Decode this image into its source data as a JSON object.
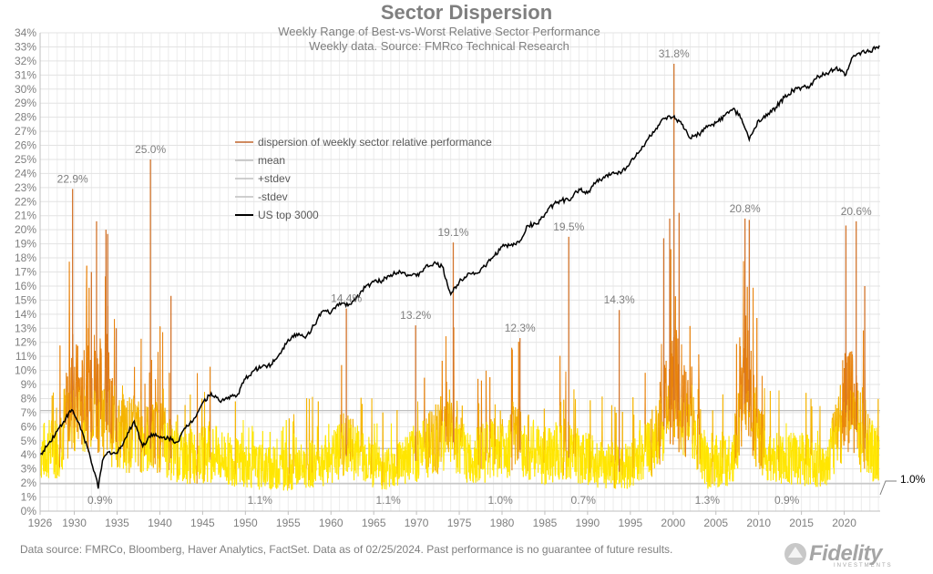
{
  "header": {
    "title": "Sector Dispersion",
    "subtitle1": "Weekly Range of Best-vs-Worst Relative Sector Performance",
    "subtitle2": "Weekly data.  Source: FMRco Technical Research"
  },
  "footer": {
    "source": "Data source: FMRCo, Bloomberg, Haver Analytics, FactSet. Data as of 02/25/2024. Past performance is no guarantee of future results.",
    "logo_text": "Fidelity",
    "logo_subtext": "INVESTMENTS"
  },
  "chart_data": {
    "type": "line",
    "title": "Sector Dispersion",
    "x_ticks": [
      "1926",
      "1930",
      "1935",
      "1940",
      "1945",
      "1950",
      "1955",
      "1960",
      "1965",
      "1970",
      "1975",
      "1980",
      "1985",
      "1990",
      "1995",
      "2000",
      "2005",
      "2010",
      "2015",
      "2020"
    ],
    "y_ticks": [
      "0%",
      "1%",
      "2%",
      "3%",
      "4%",
      "5%",
      "6%",
      "7%",
      "8%",
      "9%",
      "10%",
      "11%",
      "12%",
      "13%",
      "14%",
      "15%",
      "16%",
      "17%",
      "18%",
      "19%",
      "20%",
      "21%",
      "22%",
      "23%",
      "24%",
      "25%",
      "26%",
      "27%",
      "28%",
      "29%",
      "30%",
      "31%",
      "32%",
      "33%",
      "34%"
    ],
    "xlim": [
      1926,
      2024.2
    ],
    "ylim": [
      0,
      34
    ],
    "grid": true,
    "legend_position": "upper-left",
    "legend": [
      {
        "name": "dispersion of weekly sector relative performance",
        "color": "#c0652c"
      },
      {
        "name": "mean",
        "color": "#bfbfbf"
      },
      {
        "name": "+stdev",
        "color": "#bfbfbf"
      },
      {
        "name": "-stdev",
        "color": "#bfbfbf"
      },
      {
        "name": "US top 3000",
        "color": "#000000"
      }
    ],
    "reference_lines": {
      "mean": 4.45,
      "plus_stdev": 7.15,
      "minus_stdev": 1.95
    },
    "dispersion_series": {
      "name": "dispersion of weekly sector relative performance",
      "color_low": "#ffe600",
      "color_high": "#e8820c",
      "approx_points": [
        [
          1926,
          4.5
        ],
        [
          1928,
          5
        ],
        [
          1929.5,
          8
        ],
        [
          1930,
          9
        ],
        [
          1931,
          8
        ],
        [
          1932,
          10
        ],
        [
          1933,
          9
        ],
        [
          1935,
          6
        ],
        [
          1937,
          6
        ],
        [
          1939,
          5.5
        ],
        [
          1940,
          6
        ],
        [
          1942,
          4
        ],
        [
          1946,
          4.5
        ],
        [
          1950,
          3.5
        ],
        [
          1955,
          3.2
        ],
        [
          1960,
          4
        ],
        [
          1962,
          5
        ],
        [
          1966,
          3.2
        ],
        [
          1970,
          4.5
        ],
        [
          1974,
          6.5
        ],
        [
          1976,
          4
        ],
        [
          1980,
          5
        ],
        [
          1982,
          5.5
        ],
        [
          1985,
          4
        ],
        [
          1987,
          5
        ],
        [
          1990,
          4
        ],
        [
          1992,
          3.5
        ],
        [
          1995,
          3.5
        ],
        [
          1998,
          5.5
        ],
        [
          2000,
          10
        ],
        [
          2002,
          7
        ],
        [
          2004,
          3.5
        ],
        [
          2007,
          4
        ],
        [
          2008.5,
          10
        ],
        [
          2009.5,
          7
        ],
        [
          2011,
          4
        ],
        [
          2015,
          4
        ],
        [
          2018,
          3.5
        ],
        [
          2020.3,
          9
        ],
        [
          2021,
          8
        ],
        [
          2022,
          6
        ],
        [
          2023,
          5
        ],
        [
          2024,
          4
        ]
      ],
      "spikes": [
        [
          1929.8,
          22.9
        ],
        [
          1932,
          17
        ],
        [
          1932.6,
          20.6
        ],
        [
          1933.7,
          20
        ],
        [
          1933.9,
          19.7
        ],
        [
          1938.9,
          25.0
        ],
        [
          1934.9,
          13
        ],
        [
          1941.3,
          15.3
        ],
        [
          1961.8,
          14.4
        ],
        [
          1969.9,
          13.2
        ],
        [
          1974.3,
          19.1
        ],
        [
          1982.1,
          12.3
        ],
        [
          1987.8,
          19.5
        ],
        [
          1993.7,
          14.3
        ],
        [
          1998.9,
          19.4
        ],
        [
          1999.6,
          20.8
        ],
        [
          2000.1,
          31.8
        ],
        [
          2000.7,
          21.2
        ],
        [
          2008.4,
          20.8
        ],
        [
          2008.9,
          20.7
        ],
        [
          2020.2,
          20.3
        ],
        [
          2021.4,
          20.6
        ],
        [
          2022.4,
          16
        ]
      ],
      "annotations": [
        {
          "x": 1929.8,
          "y": 22.9,
          "text": "22.9%"
        },
        {
          "x": 1938.9,
          "y": 25.0,
          "text": "25.0%"
        },
        {
          "x": 1961.8,
          "y": 14.4,
          "text": "14.4%"
        },
        {
          "x": 1969.9,
          "y": 13.2,
          "text": "13.2%"
        },
        {
          "x": 1974.3,
          "y": 19.1,
          "text": "19.1%"
        },
        {
          "x": 1982.1,
          "y": 12.3,
          "text": "12.3%"
        },
        {
          "x": 1987.8,
          "y": 19.5,
          "text": "19.5%"
        },
        {
          "x": 1993.7,
          "y": 14.3,
          "text": "14.3%"
        },
        {
          "x": 2000.1,
          "y": 31.8,
          "text": "31.8%"
        },
        {
          "x": 2008.4,
          "y": 20.8,
          "text": "20.8%"
        },
        {
          "x": 2021.4,
          "y": 20.6,
          "text": "20.6%"
        },
        {
          "x": 1933,
          "y": 0.9,
          "text": "0.9%"
        },
        {
          "x": 1951.7,
          "y": 1.1,
          "text": "1.1%"
        },
        {
          "x": 1966.7,
          "y": 1.1,
          "text": "1.1%"
        },
        {
          "x": 1979.8,
          "y": 1.0,
          "text": "1.0%"
        },
        {
          "x": 1989.5,
          "y": 0.7,
          "text": "0.7%"
        },
        {
          "x": 2004,
          "y": 1.3,
          "text": "1.3%"
        },
        {
          "x": 2013.3,
          "y": 0.9,
          "text": "0.9%"
        },
        {
          "x": 2024,
          "y": 1.0,
          "text": "1.0%"
        }
      ]
    },
    "us_top_3000_series": {
      "name": "US top 3000",
      "color": "#000000",
      "points": [
        [
          1926,
          4.0
        ],
        [
          1927,
          4.8
        ],
        [
          1928,
          5.7
        ],
        [
          1929,
          6.6
        ],
        [
          1929.7,
          7.2
        ],
        [
          1930.5,
          6.3
        ],
        [
          1931.5,
          4.6
        ],
        [
          1932.5,
          2.5
        ],
        [
          1932.8,
          1.6
        ],
        [
          1933.3,
          3.6
        ],
        [
          1934,
          4.2
        ],
        [
          1935,
          4.1
        ],
        [
          1936,
          5.2
        ],
        [
          1937,
          6.4
        ],
        [
          1938,
          4.6
        ],
        [
          1939,
          5.5
        ],
        [
          1940,
          5.2
        ],
        [
          1941,
          5.2
        ],
        [
          1942,
          4.9
        ],
        [
          1943,
          5.9
        ],
        [
          1944,
          6.6
        ],
        [
          1945,
          7.7
        ],
        [
          1946,
          8.4
        ],
        [
          1947,
          7.8
        ],
        [
          1948,
          8.1
        ],
        [
          1949,
          8.2
        ],
        [
          1950,
          9.4
        ],
        [
          1951,
          10.0
        ],
        [
          1952,
          10.3
        ],
        [
          1953,
          10.4
        ],
        [
          1954,
          11.2
        ],
        [
          1955,
          12.2
        ],
        [
          1956,
          12.6
        ],
        [
          1957,
          12.3
        ],
        [
          1958,
          13.2
        ],
        [
          1959,
          14.2
        ],
        [
          1960,
          14.1
        ],
        [
          1961,
          14.8
        ],
        [
          1962,
          14.6
        ],
        [
          1963,
          15.2
        ],
        [
          1964,
          15.9
        ],
        [
          1965,
          16.3
        ],
        [
          1966,
          16.4
        ],
        [
          1967,
          16.8
        ],
        [
          1968,
          17.1
        ],
        [
          1969,
          16.8
        ],
        [
          1970,
          16.7
        ],
        [
          1971,
          17.3
        ],
        [
          1972,
          17.6
        ],
        [
          1973,
          17.4
        ],
        [
          1974,
          15.4
        ],
        [
          1975,
          16.3
        ],
        [
          1976,
          16.9
        ],
        [
          1977,
          16.9
        ],
        [
          1978,
          17.4
        ],
        [
          1979,
          18.1
        ],
        [
          1980,
          18.8
        ],
        [
          1981,
          18.9
        ],
        [
          1982,
          19.1
        ],
        [
          1983,
          20.3
        ],
        [
          1984,
          20.4
        ],
        [
          1985,
          21.1
        ],
        [
          1986,
          21.8
        ],
        [
          1987,
          22.1
        ],
        [
          1988,
          22.1
        ],
        [
          1989,
          22.9
        ],
        [
          1990,
          22.6
        ],
        [
          1991,
          23.4
        ],
        [
          1992,
          23.7
        ],
        [
          1993,
          24.1
        ],
        [
          1994,
          24.1
        ],
        [
          1995,
          24.8
        ],
        [
          1996,
          25.5
        ],
        [
          1997,
          26.4
        ],
        [
          1998,
          27.2
        ],
        [
          1999,
          27.9
        ],
        [
          2000,
          28.0
        ],
        [
          2001,
          27.5
        ],
        [
          2002,
          26.5
        ],
        [
          2003,
          26.8
        ],
        [
          2004,
          27.3
        ],
        [
          2005,
          27.6
        ],
        [
          2006,
          28.1
        ],
        [
          2007,
          28.6
        ],
        [
          2008,
          27.9
        ],
        [
          2008.9,
          26.4
        ],
        [
          2009.5,
          27.2
        ],
        [
          2010,
          27.8
        ],
        [
          2011,
          28.1
        ],
        [
          2012,
          28.7
        ],
        [
          2013,
          29.4
        ],
        [
          2014,
          29.9
        ],
        [
          2015,
          30.1
        ],
        [
          2016,
          30.2
        ],
        [
          2017,
          30.9
        ],
        [
          2018,
          31.1
        ],
        [
          2019,
          31.5
        ],
        [
          2020.2,
          31.0
        ],
        [
          2021,
          32.3
        ],
        [
          2022,
          32.6
        ],
        [
          2023,
          32.7
        ],
        [
          2024.1,
          33.1
        ]
      ]
    }
  }
}
